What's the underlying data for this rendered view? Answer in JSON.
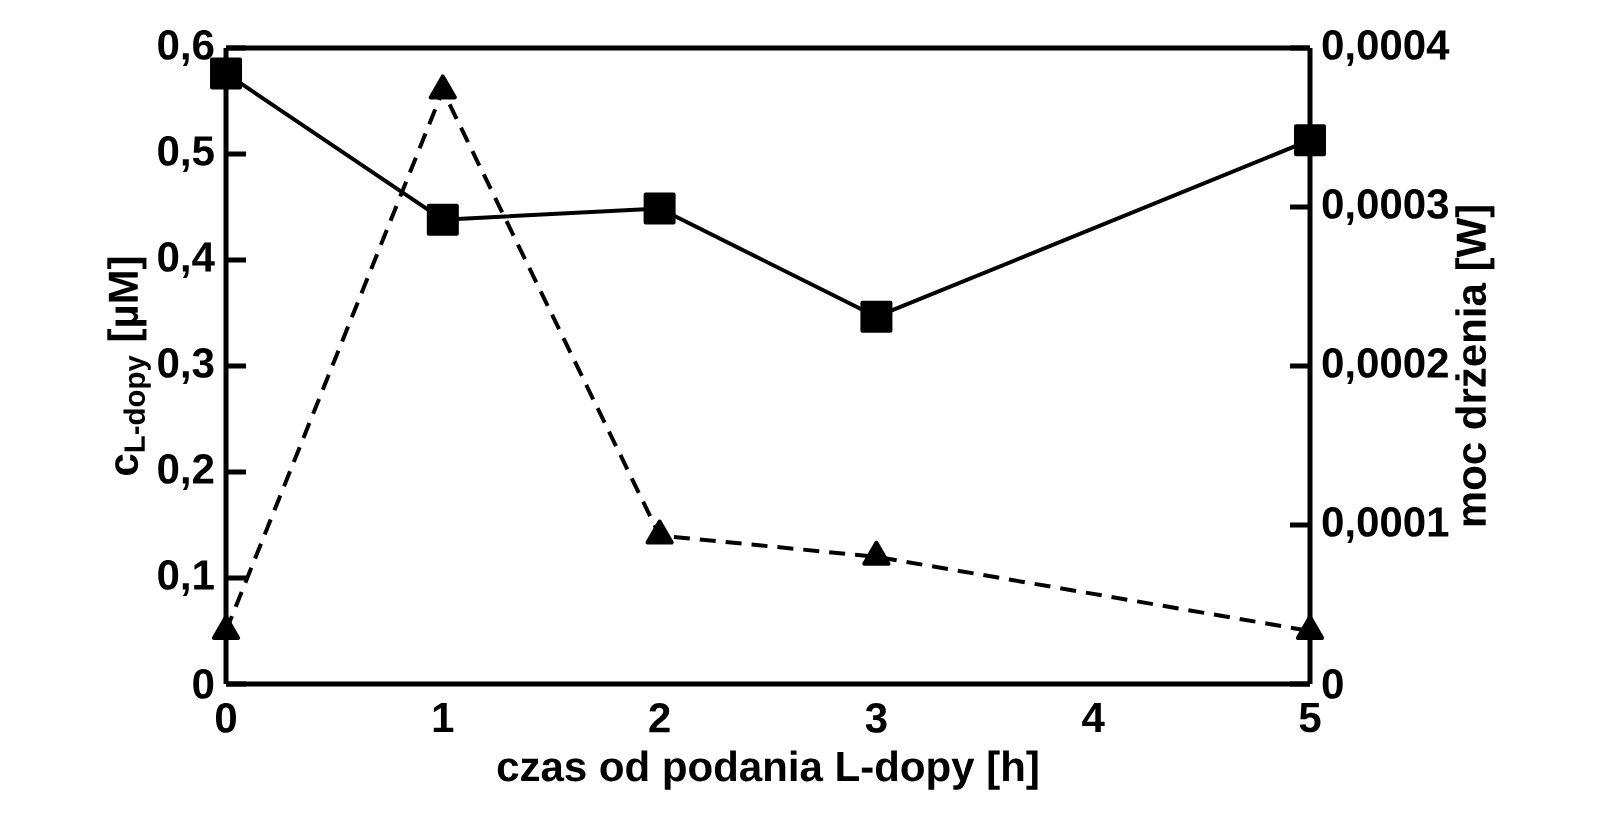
{
  "chart_data": {
    "type": "line",
    "xlabel": "czas od podania  L-dopy [h]",
    "ylabel": "**c**$_{L-dopy}$ [µM]",
    "y2label": "moc drżenia [W]",
    "x": [
      0,
      1,
      2,
      3,
      5
    ],
    "series": [
      {
        "color": "#000000",
        "marker": "square",
        "line_style": "solid",
        "axis": "y2",
        "values": [
          0.000384,
          0.000292,
          0.000299,
          0.000231,
          0.000342
        ]
      },
      {
        "color": "#000000",
        "marker": "triangle",
        "line_style": "dashed",
        "values": [
          0.05,
          0.56,
          0.14,
          0.12,
          0.05
        ]
      }
    ],
    "xlim": [
      0,
      5
    ],
    "xticks": [
      0,
      1,
      2,
      3,
      4,
      5
    ],
    "ylim": [
      0,
      0.6
    ],
    "yticks": [
      0,
      {
        "value": 0.1,
        "label": "0,1"
      },
      {
        "value": 0.2,
        "label": "0,2"
      },
      {
        "value": 0.3,
        "label": "0,3"
      },
      {
        "value": 0.4,
        "label": "0,4"
      },
      {
        "value": 0.5,
        "label": "0,5"
      },
      {
        "value": 0.6,
        "label": "0,6"
      }
    ],
    "y2lim": [
      0,
      0.0004
    ],
    "y2ticks": [
      0,
      {
        "value": 0.0001,
        "label": "0,0001"
      },
      {
        "value": 0.0002,
        "label": "0,0002"
      },
      {
        "value": 0.0003,
        "label": "0,0003"
      },
      {
        "value": 0.0004,
        "label": "0,0004"
      }
    ]
  }
}
